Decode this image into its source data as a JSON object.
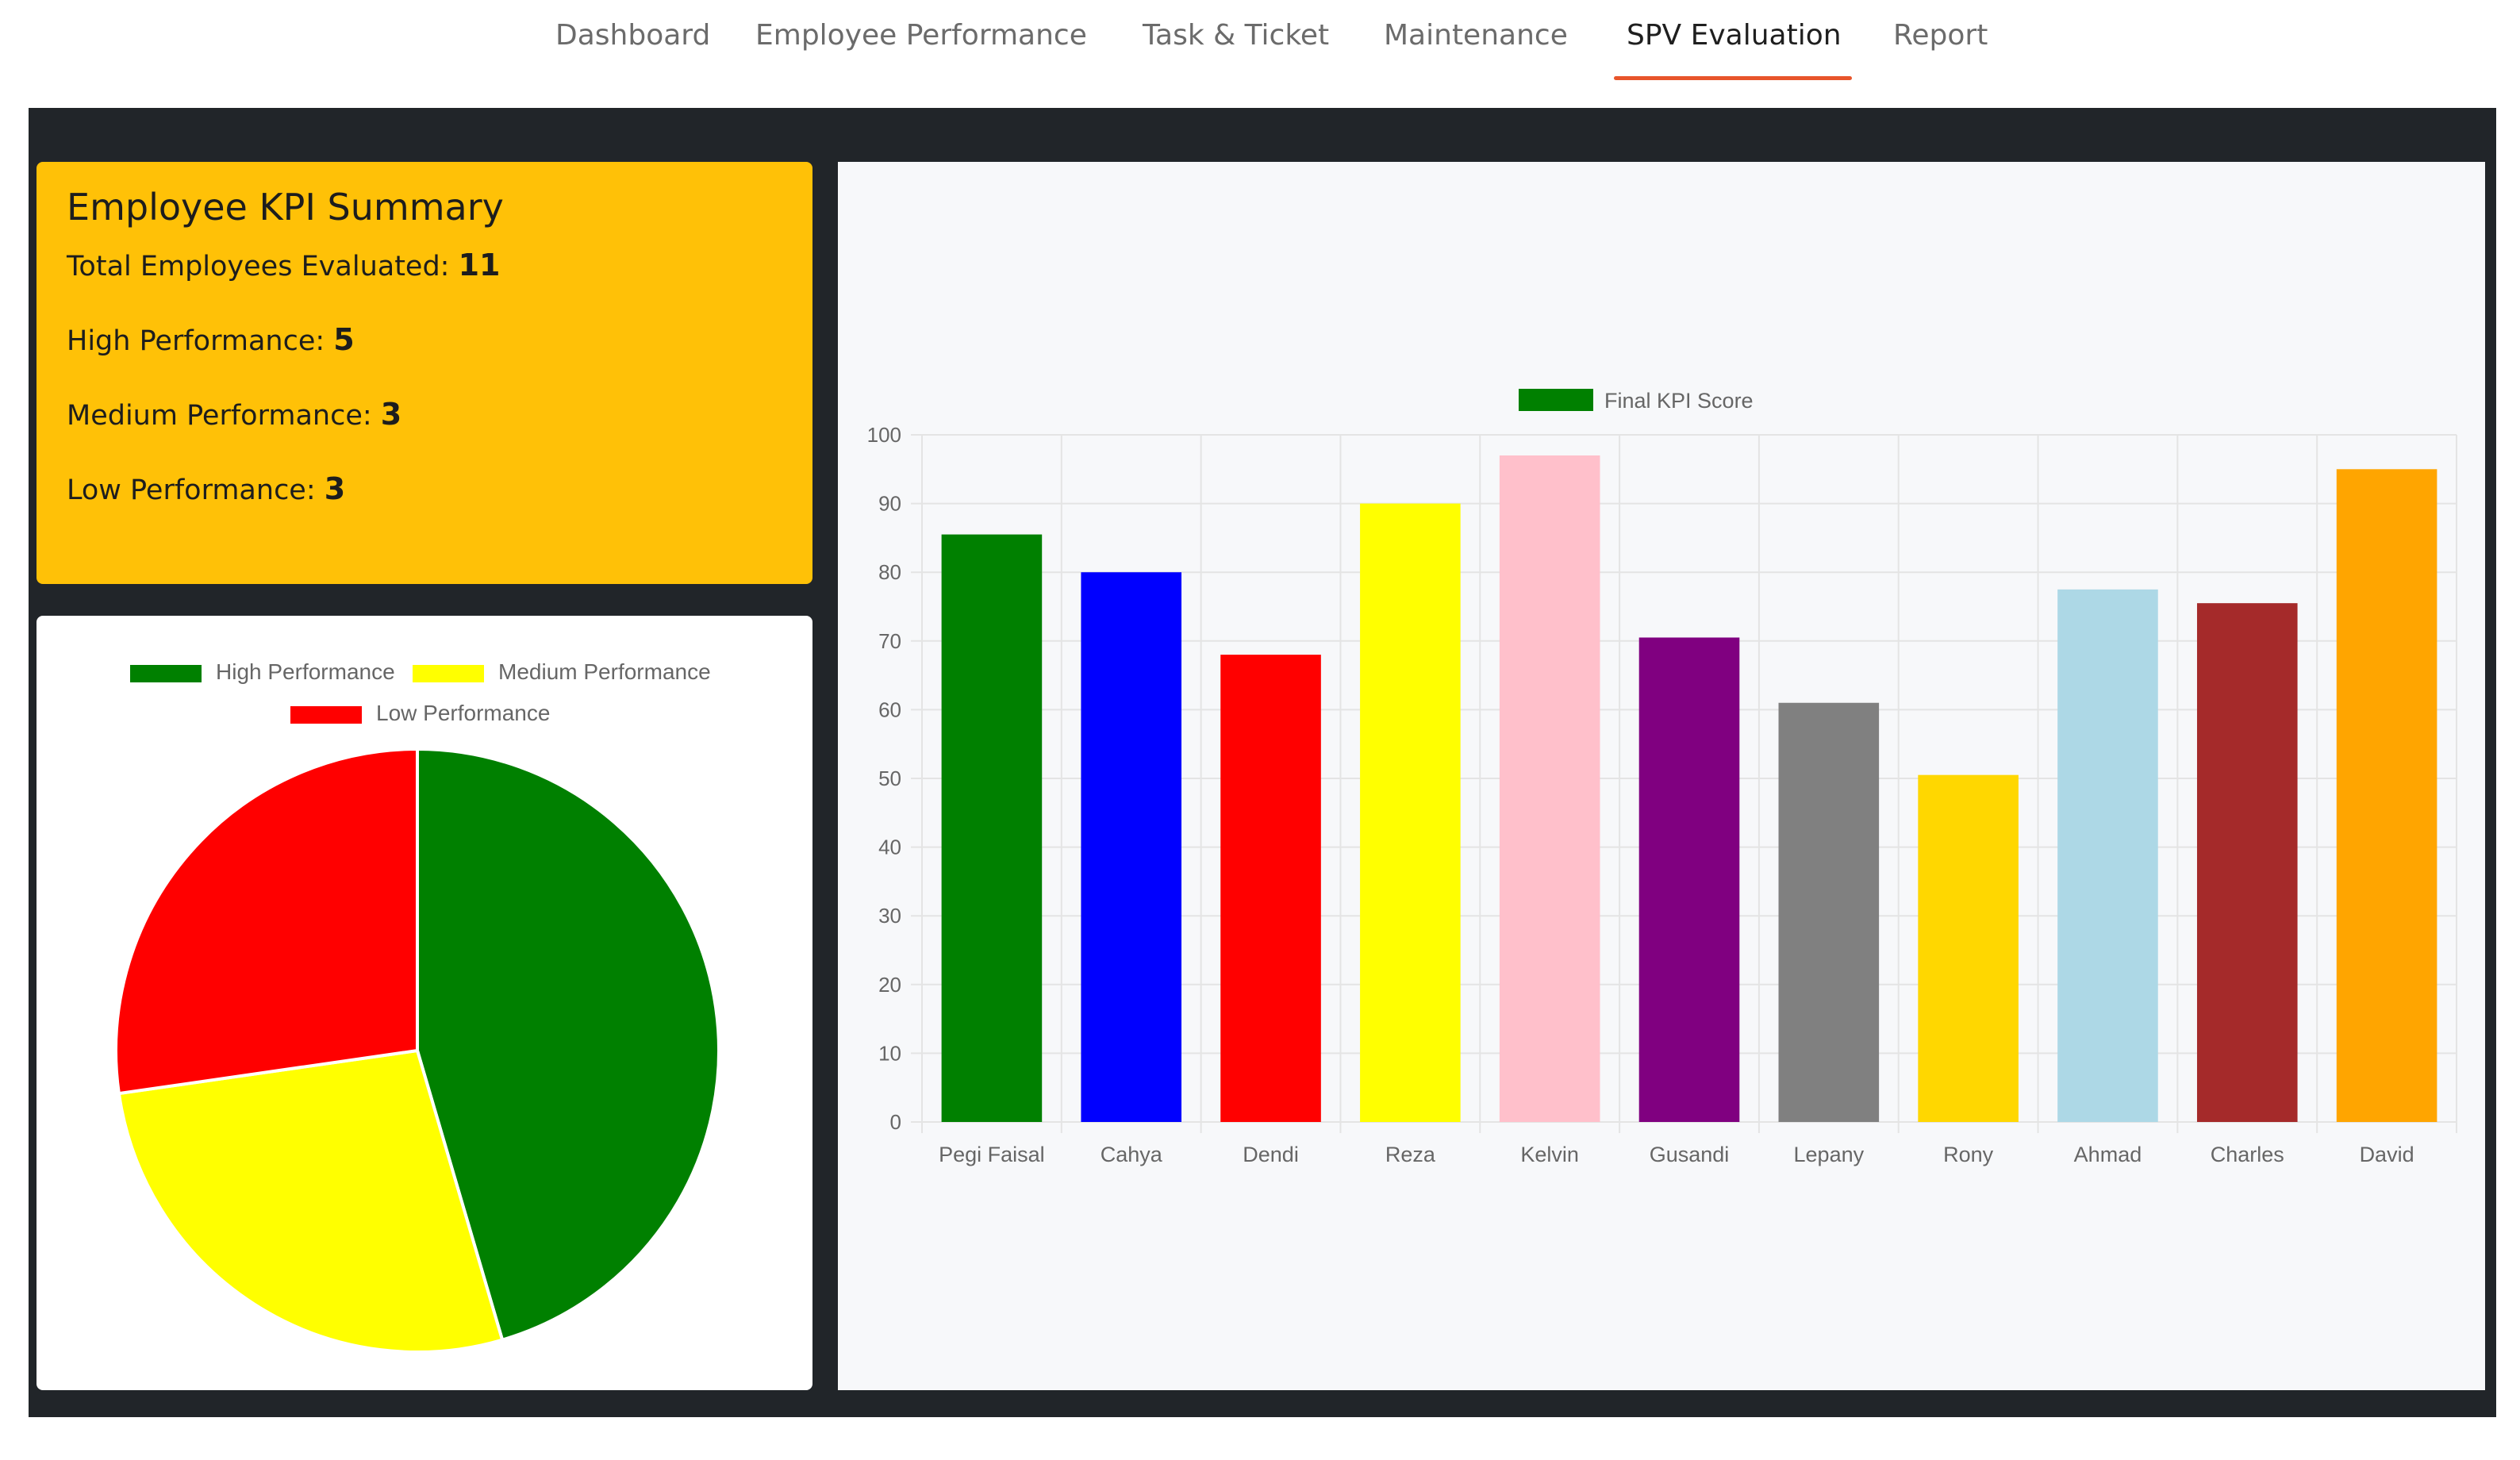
{
  "nav": {
    "tabs": [
      {
        "label": "Dashboard",
        "active": false
      },
      {
        "label": "Employee Performance",
        "active": false
      },
      {
        "label": "Task & Ticket",
        "active": false
      },
      {
        "label": "Maintenance",
        "active": false
      },
      {
        "label": "SPV Evaluation",
        "active": true
      },
      {
        "label": "Report",
        "active": false
      }
    ]
  },
  "kpi_summary": {
    "title": "Employee KPI Summary",
    "total_label": "Total Employees Evaluated: ",
    "total_value": "11",
    "high_label": "High Performance: ",
    "high_value": "5",
    "medium_label": "Medium Performance: ",
    "medium_value": "3",
    "low_label": "Low Performance: ",
    "low_value": "3"
  },
  "colors": {
    "accent": "#e8552b",
    "panel_bg": "#212529",
    "kpi_card_bg": "#ffc107"
  },
  "chart_data": [
    {
      "type": "pie",
      "categories": [
        "High Performance",
        "Medium Performance",
        "Low Performance"
      ],
      "values": [
        5,
        3,
        3
      ],
      "colors": [
        "#008000",
        "#ffff00",
        "#ff0000"
      ],
      "legend_position": "top"
    },
    {
      "type": "bar",
      "categories": [
        "Pegi Faisal",
        "Cahya",
        "Dendi",
        "Reza",
        "Kelvin",
        "Gusandi",
        "Lepany",
        "Rony",
        "Ahmad",
        "Charles",
        "David"
      ],
      "series": [
        {
          "name": "Final KPI Score",
          "values": [
            85.5,
            80,
            68,
            90,
            97,
            70.5,
            61,
            50.5,
            77.5,
            75.5,
            95
          ]
        }
      ],
      "bar_colors": [
        "#008000",
        "#0000ff",
        "#ff0000",
        "#ffff00",
        "#ffc0cb",
        "#800080",
        "#808080",
        "#ffd700",
        "#add8e6",
        "#a52a2a",
        "#ffa500"
      ],
      "legend_color": "#008000",
      "ylim": [
        0,
        100
      ],
      "yticks": [
        0,
        10,
        20,
        30,
        40,
        50,
        60,
        70,
        80,
        90,
        100
      ],
      "grid": true,
      "legend_position": "top"
    }
  ]
}
